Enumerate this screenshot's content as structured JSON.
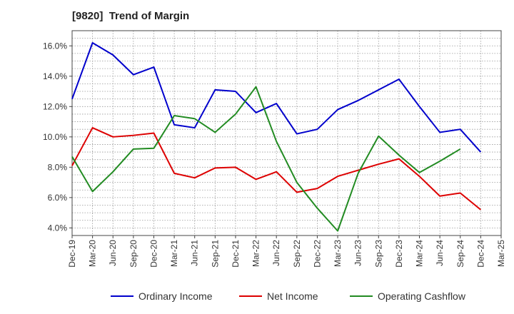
{
  "chart_data": {
    "type": "line",
    "title": "[9820]  Trend of Margin",
    "xlabel": "",
    "ylabel": "",
    "x": [
      "Dec-19",
      "Mar-20",
      "Jun-20",
      "Sep-20",
      "Dec-20",
      "Mar-21",
      "Jun-21",
      "Sep-21",
      "Dec-21",
      "Mar-22",
      "Jun-22",
      "Sep-22",
      "Dec-22",
      "Mar-23",
      "Jun-23",
      "Sep-23",
      "Dec-23",
      "Mar-24",
      "Jun-24",
      "Sep-24",
      "Dec-24",
      "Mar-25"
    ],
    "ylim": [
      3.5,
      17.0
    ],
    "yticks": [
      4.0,
      6.0,
      8.0,
      10.0,
      12.0,
      14.0,
      16.0
    ],
    "ytick_labels": [
      "4.0%",
      "6.0%",
      "8.0%",
      "10.0%",
      "12.0%",
      "14.0%",
      "16.0%"
    ],
    "grid": true,
    "legend_position": "bottom",
    "series": [
      {
        "name": "Ordinary Income",
        "color": "#0000cc",
        "values": [
          12.5,
          16.2,
          15.4,
          14.1,
          14.6,
          10.8,
          10.6,
          13.1,
          13.0,
          11.6,
          12.2,
          10.2,
          10.5,
          11.8,
          12.4,
          13.1,
          13.8,
          12.0,
          10.3,
          10.5,
          9.0,
          null
        ]
      },
      {
        "name": "Net Income",
        "color": "#dd0000",
        "values": [
          8.1,
          10.6,
          10.0,
          10.1,
          10.25,
          7.6,
          7.3,
          7.95,
          8.0,
          7.2,
          7.7,
          6.35,
          6.6,
          7.4,
          7.8,
          8.2,
          8.55,
          7.4,
          6.1,
          6.3,
          5.2,
          null
        ]
      },
      {
        "name": "Operating Cashflow",
        "color": "#228b22",
        "values": [
          8.7,
          6.4,
          7.7,
          9.2,
          9.25,
          11.4,
          11.2,
          10.3,
          11.5,
          13.3,
          9.7,
          7.0,
          5.3,
          3.8,
          7.6,
          10.05,
          8.8,
          7.65,
          8.4,
          9.2,
          null,
          null
        ]
      }
    ]
  }
}
